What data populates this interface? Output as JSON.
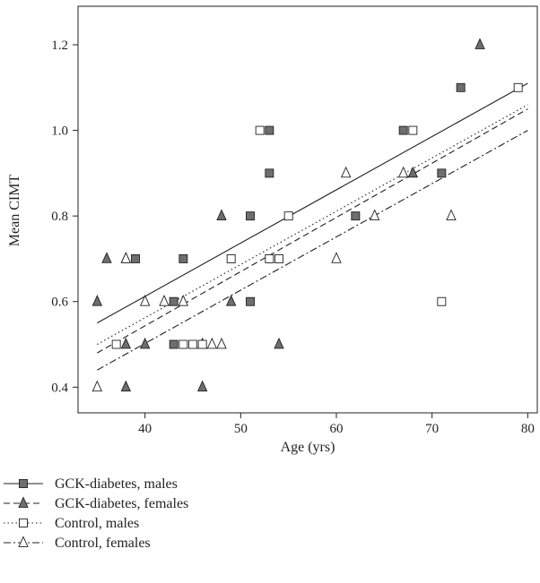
{
  "chart_data": {
    "type": "scatter",
    "title": "",
    "xlabel": "Age (yrs)",
    "ylabel": "Mean CIMT",
    "xlim": [
      33,
      81
    ],
    "ylim": [
      0.34,
      1.29
    ],
    "x_ticks": [
      40,
      50,
      60,
      70,
      80
    ],
    "y_ticks": [
      0.4,
      0.6,
      0.8,
      1.0,
      1.2
    ],
    "x_tick_labels": [
      "40",
      "50",
      "60",
      "70",
      "80"
    ],
    "y_tick_labels": [
      "0.4",
      "0.6",
      "0.8",
      "1.0",
      "1.2"
    ],
    "grid": false,
    "legend_position": "bottom-left",
    "series": [
      {
        "name": "GCK-diabetes, males",
        "marker": "square",
        "fill": "#6d6e71",
        "line_style": "solid",
        "points": [
          [
            39,
            0.7
          ],
          [
            43,
            0.6
          ],
          [
            43,
            0.5
          ],
          [
            44,
            0.7
          ],
          [
            51,
            0.8
          ],
          [
            51,
            0.6
          ],
          [
            53,
            1.0
          ],
          [
            53,
            0.9
          ],
          [
            62,
            0.8
          ],
          [
            67,
            1.0
          ],
          [
            71,
            0.9
          ],
          [
            73,
            1.1
          ]
        ],
        "fit_line": [
          [
            35,
            0.55
          ],
          [
            80,
            1.11
          ]
        ]
      },
      {
        "name": "GCK-diabetes, females",
        "marker": "triangle",
        "fill": "#6d6e71",
        "line_style": "dashed",
        "points": [
          [
            35,
            0.6
          ],
          [
            36,
            0.7
          ],
          [
            38,
            0.5
          ],
          [
            38,
            0.4
          ],
          [
            38,
            0.7
          ],
          [
            40,
            0.5
          ],
          [
            46,
            0.5
          ],
          [
            46,
            0.4
          ],
          [
            48,
            0.8
          ],
          [
            49,
            0.6
          ],
          [
            54,
            0.5
          ],
          [
            68,
            0.9
          ],
          [
            75,
            1.2
          ]
        ],
        "fit_line": [
          [
            35,
            0.48
          ],
          [
            80,
            1.05
          ]
        ]
      },
      {
        "name": "Control, males",
        "marker": "square",
        "fill": "#ffffff",
        "line_style": "dotted",
        "points": [
          [
            37,
            0.5
          ],
          [
            44,
            0.5
          ],
          [
            45,
            0.5
          ],
          [
            46,
            0.5
          ],
          [
            49,
            0.7
          ],
          [
            52,
            1.0
          ],
          [
            53,
            0.7
          ],
          [
            54,
            0.7
          ],
          [
            55,
            0.8
          ],
          [
            68,
            1.0
          ],
          [
            71,
            0.6
          ],
          [
            79,
            1.1
          ]
        ],
        "fit_line": [
          [
            35,
            0.5
          ],
          [
            80,
            1.06
          ]
        ]
      },
      {
        "name": "Control, females",
        "marker": "triangle",
        "fill": "#ffffff",
        "line_style": "dashdot",
        "points": [
          [
            35,
            0.4
          ],
          [
            38,
            0.7
          ],
          [
            40,
            0.6
          ],
          [
            42,
            0.6
          ],
          [
            44,
            0.6
          ],
          [
            47,
            0.5
          ],
          [
            48,
            0.5
          ],
          [
            60,
            0.7
          ],
          [
            61,
            0.9
          ],
          [
            64,
            0.8
          ],
          [
            67,
            0.9
          ],
          [
            72,
            0.8
          ]
        ],
        "fit_line": [
          [
            35,
            0.44
          ],
          [
            80,
            1.0
          ]
        ]
      }
    ]
  }
}
